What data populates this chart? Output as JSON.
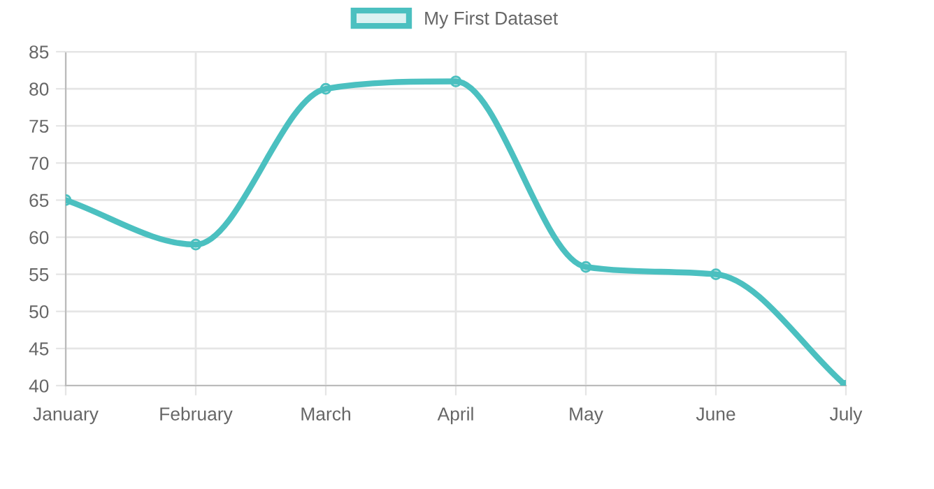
{
  "chart_data": {
    "type": "line",
    "categories": [
      "January",
      "February",
      "March",
      "April",
      "May",
      "June",
      "July"
    ],
    "series": [
      {
        "name": "My First Dataset",
        "color": "#4bc0c0",
        "values": [
          65,
          59,
          80,
          81,
          56,
          55,
          40
        ]
      }
    ],
    "ylim": [
      40,
      85
    ],
    "yticks": [
      40,
      45,
      50,
      55,
      60,
      65,
      70,
      75,
      80,
      85
    ],
    "grid": true,
    "legend": "top",
    "marker": "circle",
    "line_style": "solid"
  }
}
